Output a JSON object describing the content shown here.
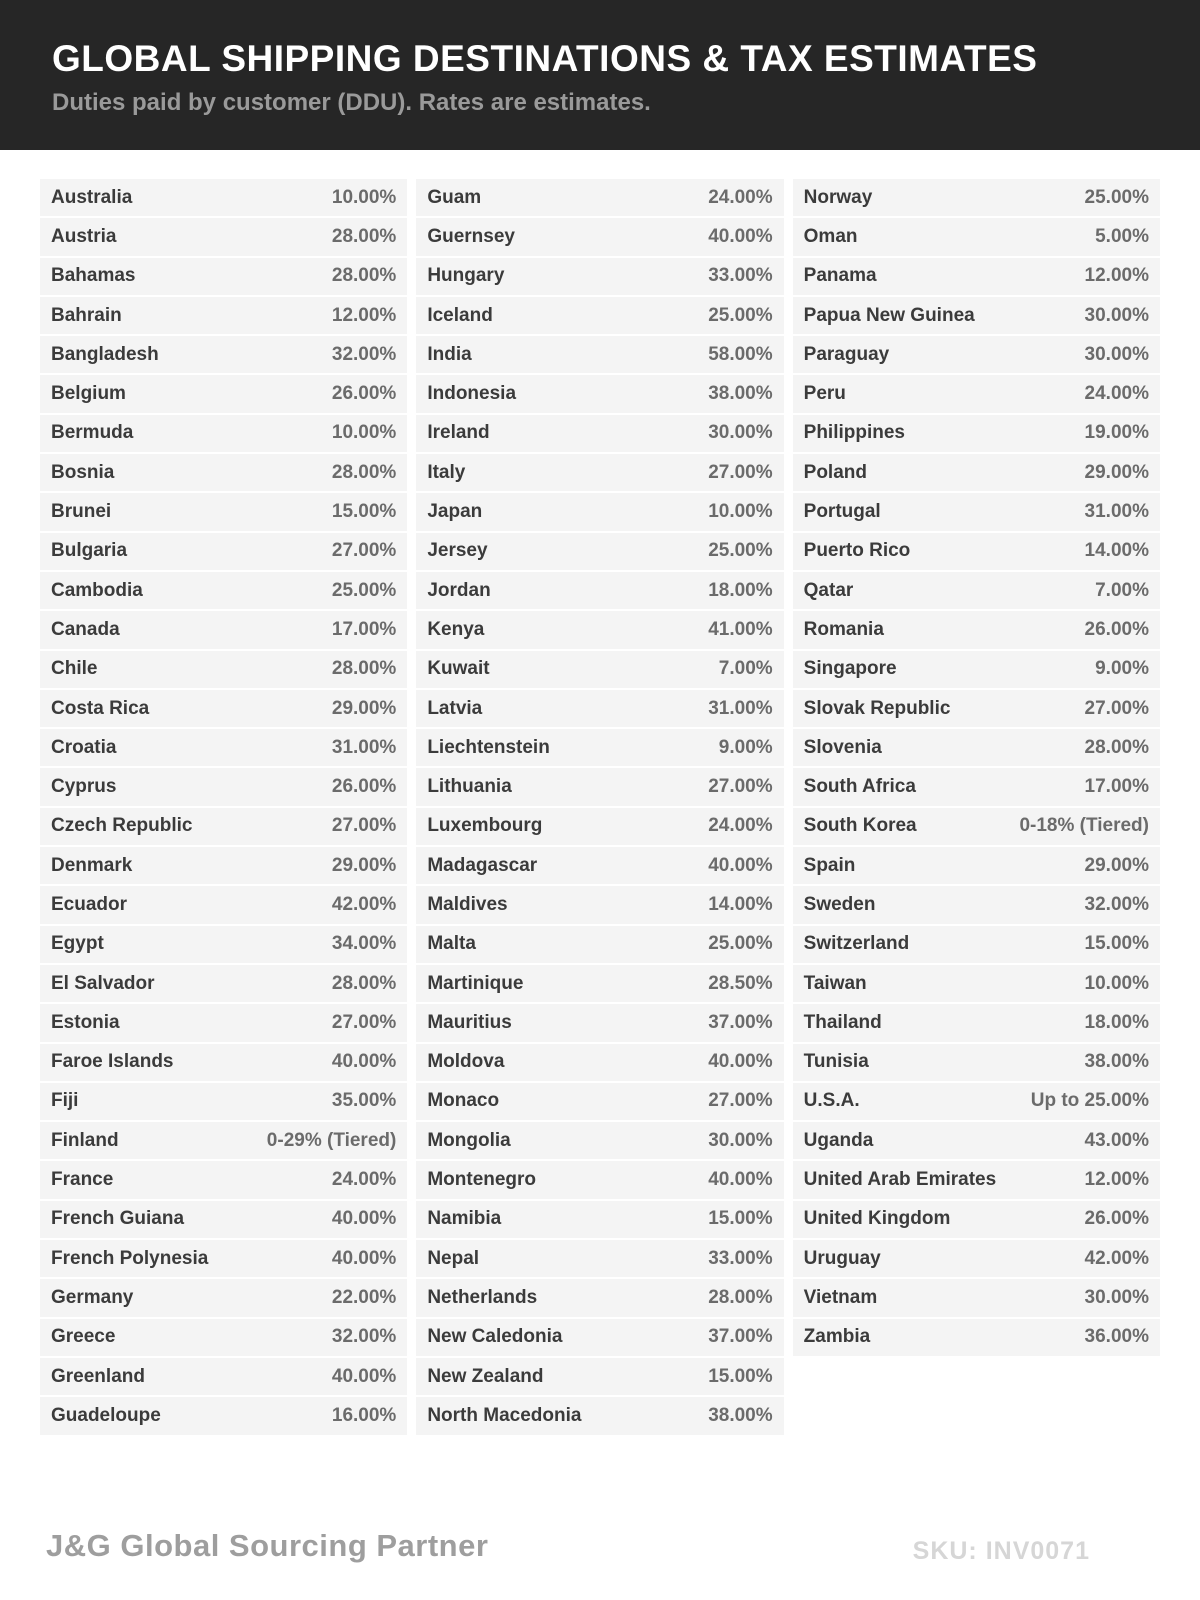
{
  "header": {
    "title": "GLOBAL SHIPPING DESTINATIONS & TAX ESTIMATES",
    "subtitle": "Duties paid by customer (DDU). Rates are estimates."
  },
  "table": {
    "columns": [
      [
        {
          "country": "Australia",
          "rate": "10.00%"
        },
        {
          "country": "Austria",
          "rate": "28.00%"
        },
        {
          "country": "Bahamas",
          "rate": "28.00%"
        },
        {
          "country": "Bahrain",
          "rate": "12.00%"
        },
        {
          "country": "Bangladesh",
          "rate": "32.00%"
        },
        {
          "country": "Belgium",
          "rate": "26.00%"
        },
        {
          "country": "Bermuda",
          "rate": "10.00%"
        },
        {
          "country": "Bosnia",
          "rate": "28.00%"
        },
        {
          "country": "Brunei",
          "rate": "15.00%"
        },
        {
          "country": "Bulgaria",
          "rate": "27.00%"
        },
        {
          "country": "Cambodia",
          "rate": "25.00%"
        },
        {
          "country": "Canada",
          "rate": "17.00%"
        },
        {
          "country": "Chile",
          "rate": "28.00%"
        },
        {
          "country": "Costa Rica",
          "rate": "29.00%"
        },
        {
          "country": "Croatia",
          "rate": "31.00%"
        },
        {
          "country": "Cyprus",
          "rate": "26.00%"
        },
        {
          "country": "Czech Republic",
          "rate": "27.00%"
        },
        {
          "country": "Denmark",
          "rate": "29.00%"
        },
        {
          "country": "Ecuador",
          "rate": "42.00%"
        },
        {
          "country": "Egypt",
          "rate": "34.00%"
        },
        {
          "country": "El Salvador",
          "rate": "28.00%"
        },
        {
          "country": "Estonia",
          "rate": "27.00%"
        },
        {
          "country": "Faroe Islands",
          "rate": "40.00%"
        },
        {
          "country": "Fiji",
          "rate": "35.00%"
        },
        {
          "country": "Finland",
          "rate": "0-29% (Tiered)"
        },
        {
          "country": "France",
          "rate": "24.00%"
        },
        {
          "country": "French Guiana",
          "rate": "40.00%"
        },
        {
          "country": "French Polynesia",
          "rate": "40.00%"
        },
        {
          "country": "Germany",
          "rate": "22.00%"
        },
        {
          "country": "Greece",
          "rate": "32.00%"
        },
        {
          "country": "Greenland",
          "rate": "40.00%"
        },
        {
          "country": "Guadeloupe",
          "rate": "16.00%"
        }
      ],
      [
        {
          "country": "Guam",
          "rate": "24.00%"
        },
        {
          "country": "Guernsey",
          "rate": "40.00%"
        },
        {
          "country": "Hungary",
          "rate": "33.00%"
        },
        {
          "country": "Iceland",
          "rate": "25.00%"
        },
        {
          "country": "India",
          "rate": "58.00%"
        },
        {
          "country": "Indonesia",
          "rate": "38.00%"
        },
        {
          "country": "Ireland",
          "rate": "30.00%"
        },
        {
          "country": "Italy",
          "rate": "27.00%"
        },
        {
          "country": "Japan",
          "rate": "10.00%"
        },
        {
          "country": "Jersey",
          "rate": "25.00%"
        },
        {
          "country": "Jordan",
          "rate": "18.00%"
        },
        {
          "country": "Kenya",
          "rate": "41.00%"
        },
        {
          "country": "Kuwait",
          "rate": "7.00%"
        },
        {
          "country": "Latvia",
          "rate": "31.00%"
        },
        {
          "country": "Liechtenstein",
          "rate": "9.00%"
        },
        {
          "country": "Lithuania",
          "rate": "27.00%"
        },
        {
          "country": "Luxembourg",
          "rate": "24.00%"
        },
        {
          "country": "Madagascar",
          "rate": "40.00%"
        },
        {
          "country": "Maldives",
          "rate": "14.00%"
        },
        {
          "country": "Malta",
          "rate": "25.00%"
        },
        {
          "country": "Martinique",
          "rate": "28.50%"
        },
        {
          "country": "Mauritius",
          "rate": "37.00%"
        },
        {
          "country": "Moldova",
          "rate": "40.00%"
        },
        {
          "country": "Monaco",
          "rate": "27.00%"
        },
        {
          "country": "Mongolia",
          "rate": "30.00%"
        },
        {
          "country": "Montenegro",
          "rate": "40.00%"
        },
        {
          "country": "Namibia",
          "rate": "15.00%"
        },
        {
          "country": "Nepal",
          "rate": "33.00%"
        },
        {
          "country": "Netherlands",
          "rate": "28.00%"
        },
        {
          "country": "New Caledonia",
          "rate": "37.00%"
        },
        {
          "country": "New Zealand",
          "rate": "15.00%"
        },
        {
          "country": "North Macedonia",
          "rate": "38.00%"
        }
      ],
      [
        {
          "country": "Norway",
          "rate": "25.00%"
        },
        {
          "country": "Oman",
          "rate": "5.00%"
        },
        {
          "country": "Panama",
          "rate": "12.00%"
        },
        {
          "country": "Papua New Guinea",
          "rate": "30.00%"
        },
        {
          "country": "Paraguay",
          "rate": "30.00%"
        },
        {
          "country": "Peru",
          "rate": "24.00%"
        },
        {
          "country": "Philippines",
          "rate": "19.00%"
        },
        {
          "country": "Poland",
          "rate": "29.00%"
        },
        {
          "country": "Portugal",
          "rate": "31.00%"
        },
        {
          "country": "Puerto Rico",
          "rate": "14.00%"
        },
        {
          "country": "Qatar",
          "rate": "7.00%"
        },
        {
          "country": "Romania",
          "rate": "26.00%"
        },
        {
          "country": "Singapore",
          "rate": "9.00%"
        },
        {
          "country": "Slovak Republic",
          "rate": "27.00%"
        },
        {
          "country": "Slovenia",
          "rate": "28.00%"
        },
        {
          "country": "South Africa",
          "rate": "17.00%"
        },
        {
          "country": "South Korea",
          "rate": "0-18% (Tiered)"
        },
        {
          "country": "Spain",
          "rate": "29.00%"
        },
        {
          "country": "Sweden",
          "rate": "32.00%"
        },
        {
          "country": "Switzerland",
          "rate": "15.00%"
        },
        {
          "country": "Taiwan",
          "rate": "10.00%"
        },
        {
          "country": "Thailand",
          "rate": "18.00%"
        },
        {
          "country": "Tunisia",
          "rate": "38.00%"
        },
        {
          "country": "U.S.A.",
          "rate": "Up to 25.00%"
        },
        {
          "country": "Uganda",
          "rate": "43.00%"
        },
        {
          "country": "United Arab Emirates",
          "rate": "12.00%"
        },
        {
          "country": "United Kingdom",
          "rate": "26.00%"
        },
        {
          "country": "Uruguay",
          "rate": "42.00%"
        },
        {
          "country": "Vietnam",
          "rate": "30.00%"
        },
        {
          "country": "Zambia",
          "rate": "36.00%"
        }
      ]
    ]
  },
  "footer": {
    "brand": "J&G Global Sourcing Partner",
    "sku": "SKU: INV0071"
  },
  "colors": {
    "header_bg": "#262626",
    "row_bg": "#f4f4f4",
    "country_text": "#3b3b3b",
    "rate_text": "#6b6b6b",
    "subtitle_text": "#9a9a9a",
    "brand_text": "#9e9e9e",
    "sku_text": "#d6d6d6"
  }
}
